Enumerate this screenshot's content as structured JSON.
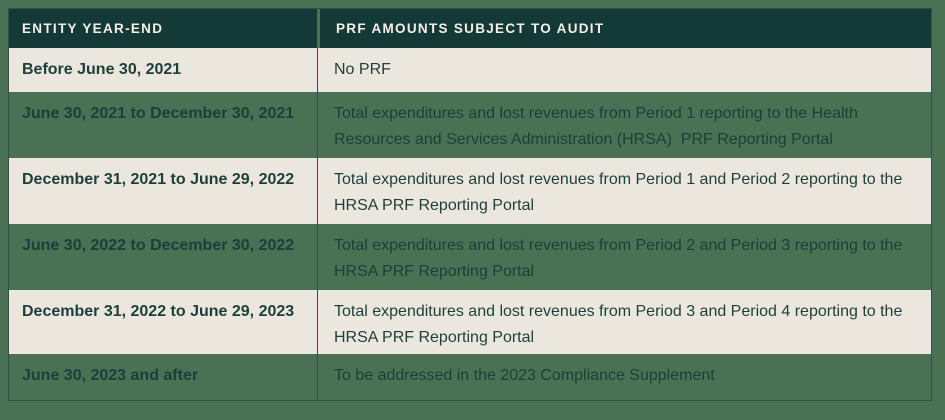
{
  "table": {
    "columns": [
      {
        "label": "ENTITY YEAR-END"
      },
      {
        "label": "PRF AMOUNTS SUBJECT TO AUDIT"
      }
    ],
    "rows": [
      {
        "variant": "cream",
        "year_end": "Before June 30, 2021",
        "audit": "No PRF"
      },
      {
        "variant": "green",
        "year_end": "June 30, 2021 to December 30, 2021",
        "audit": "Total expenditures and lost revenues from Period 1 reporting to the Health Resources and Services Administration (HRSA)  PRF Reporting Portal"
      },
      {
        "variant": "cream",
        "year_end": "December 31, 2021 to June 29, 2022",
        "audit": "Total expenditures and lost revenues from Period 1 and Period 2 reporting to the HRSA PRF Reporting Portal"
      },
      {
        "variant": "green",
        "year_end": "June 30, 2022 to December 30, 2022",
        "audit": "Total expenditures and lost revenues from Period 2 and Period 3 reporting to the HRSA PRF Reporting Portal"
      },
      {
        "variant": "cream",
        "year_end": "December 31, 2022 to June 29, 2023",
        "audit": "Total expenditures and lost revenues from Period 3 and Period 4 reporting to the HRSA PRF Reporting Portal"
      },
      {
        "variant": "green",
        "year_end": "June 30, 2023 and after",
        "audit": "To be addressed in the 2023 Compliance Supplement"
      }
    ],
    "colors": {
      "background_green": "#4A7154",
      "header_background": "#143A37",
      "header_text": "#F4F0E8",
      "row_cream": "#EBE7DF",
      "body_text": "#1C3F39",
      "border_line": "#2F534B"
    }
  }
}
